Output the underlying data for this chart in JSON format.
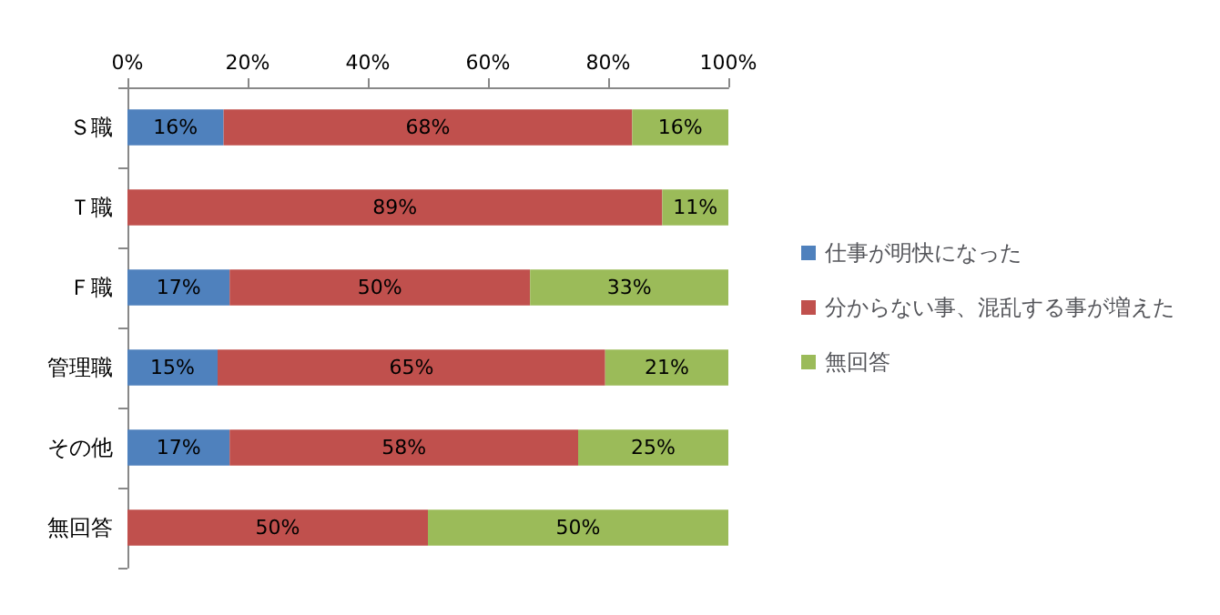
{
  "chart_data": {
    "type": "bar",
    "orientation": "horizontal",
    "stacked": true,
    "legend": "right",
    "grid": false,
    "categories": [
      "Ｓ職",
      "Ｔ職",
      "Ｆ職",
      "管理職",
      "その他",
      "無回答"
    ],
    "series": [
      {
        "name": "仕事が明快になった",
        "color": "#4f81bd",
        "values": [
          16,
          null,
          17,
          15,
          17,
          null
        ],
        "value_labels": [
          "16%",
          null,
          "17%",
          "15%",
          "17%",
          null
        ]
      },
      {
        "name": "分からない事、混乱する事が増えた",
        "color": "#c0504d",
        "values": [
          68,
          89,
          50,
          64.5,
          58,
          50
        ],
        "value_labels": [
          "68%",
          "89%",
          "50%",
          "65%",
          "58%",
          "50%"
        ]
      },
      {
        "name": "無回答",
        "color": "#9bbb59",
        "values": [
          16,
          11,
          33,
          20.5,
          25,
          50
        ],
        "value_labels": [
          "16%",
          "11%",
          "33%",
          "21%",
          "25%",
          "50%"
        ]
      }
    ],
    "xlim": [
      0,
      100
    ],
    "xticks": [
      {
        "value": 0,
        "label": "0%"
      },
      {
        "value": 20,
        "label": "20%"
      },
      {
        "value": 40,
        "label": "40%"
      },
      {
        "value": 60,
        "label": "60%"
      },
      {
        "value": 80,
        "label": "80%"
      },
      {
        "value": 100,
        "label": "100%"
      }
    ]
  }
}
